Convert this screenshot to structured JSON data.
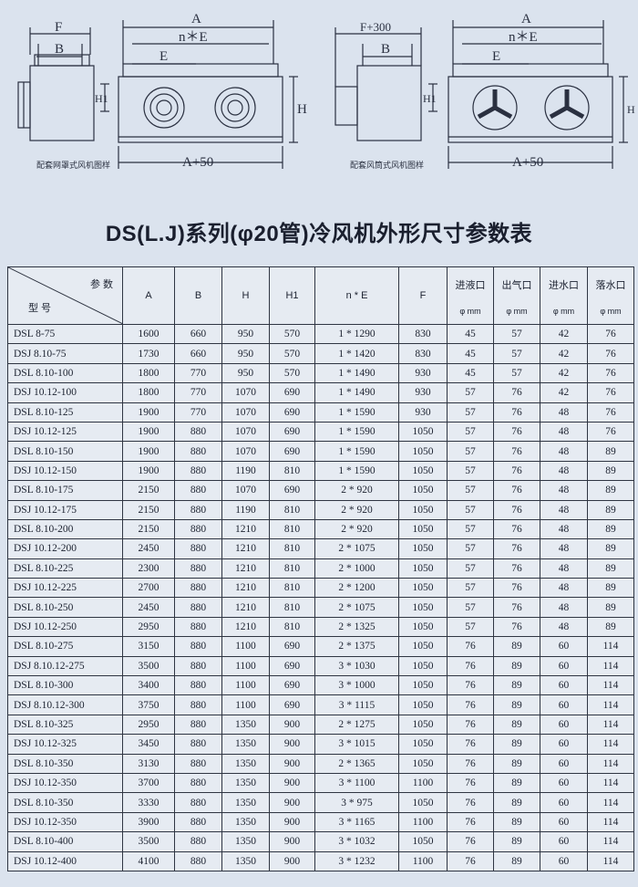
{
  "diagrams": {
    "dim_a": "A",
    "dim_b": "B",
    "dim_f_b": "F",
    "dim_f300": "F+300",
    "dim_ne": "n＊E",
    "dim_e": "E",
    "dim_h": "H",
    "dim_h1": "H1",
    "dim_a50": "A+50",
    "caption_left": "配套网罩式风机图样",
    "caption_right": "配套风筒式风机图样"
  },
  "title": "DS(L.J)系列(φ20管)冷风机外形尺寸参数表",
  "table": {
    "header": {
      "diag_top": "参 数",
      "diag_bottom": "型 号",
      "col_a": "A",
      "col_b": "B",
      "col_h": "H",
      "col_h1": "H1",
      "col_ne": "n * E",
      "col_f": "F",
      "col_in": "进液口",
      "col_out": "出气口",
      "col_water": "进水口",
      "col_drain": "落水口",
      "unit": "φ mm"
    },
    "rows": [
      [
        "DSL 8-75",
        "1600",
        "660",
        "950",
        "570",
        "1 * 1290",
        "830",
        "45",
        "57",
        "42",
        "76"
      ],
      [
        "DSJ 8.10-75",
        "1730",
        "660",
        "950",
        "570",
        "1 * 1420",
        "830",
        "45",
        "57",
        "42",
        "76"
      ],
      [
        "DSL 8.10-100",
        "1800",
        "770",
        "950",
        "570",
        "1 * 1490",
        "930",
        "45",
        "57",
        "42",
        "76"
      ],
      [
        "DSJ 10.12-100",
        "1800",
        "770",
        "1070",
        "690",
        "1 * 1490",
        "930",
        "57",
        "76",
        "42",
        "76"
      ],
      [
        "DSL 8.10-125",
        "1900",
        "770",
        "1070",
        "690",
        "1 * 1590",
        "930",
        "57",
        "76",
        "48",
        "76"
      ],
      [
        "DSJ 10.12-125",
        "1900",
        "880",
        "1070",
        "690",
        "1 * 1590",
        "1050",
        "57",
        "76",
        "48",
        "76"
      ],
      [
        "DSL 8.10-150",
        "1900",
        "880",
        "1070",
        "690",
        "1 * 1590",
        "1050",
        "57",
        "76",
        "48",
        "89"
      ],
      [
        "DSJ 10.12-150",
        "1900",
        "880",
        "1190",
        "810",
        "1 * 1590",
        "1050",
        "57",
        "76",
        "48",
        "89"
      ],
      [
        "DSL 8.10-175",
        "2150",
        "880",
        "1070",
        "690",
        "2 * 920",
        "1050",
        "57",
        "76",
        "48",
        "89"
      ],
      [
        "DSJ 10.12-175",
        "2150",
        "880",
        "1190",
        "810",
        "2 * 920",
        "1050",
        "57",
        "76",
        "48",
        "89"
      ],
      [
        "DSL 8.10-200",
        "2150",
        "880",
        "1210",
        "810",
        "2 * 920",
        "1050",
        "57",
        "76",
        "48",
        "89"
      ],
      [
        "DSJ 10.12-200",
        "2450",
        "880",
        "1210",
        "810",
        "2 * 1075",
        "1050",
        "57",
        "76",
        "48",
        "89"
      ],
      [
        "DSL 8.10-225",
        "2300",
        "880",
        "1210",
        "810",
        "2 * 1000",
        "1050",
        "57",
        "76",
        "48",
        "89"
      ],
      [
        "DSJ 10.12-225",
        "2700",
        "880",
        "1210",
        "810",
        "2 * 1200",
        "1050",
        "57",
        "76",
        "48",
        "89"
      ],
      [
        "DSL 8.10-250",
        "2450",
        "880",
        "1210",
        "810",
        "2 * 1075",
        "1050",
        "57",
        "76",
        "48",
        "89"
      ],
      [
        "DSJ 10.12-250",
        "2950",
        "880",
        "1210",
        "810",
        "2 * 1325",
        "1050",
        "57",
        "76",
        "48",
        "89"
      ],
      [
        "DSL 8.10-275",
        "3150",
        "880",
        "1100",
        "690",
        "2 * 1375",
        "1050",
        "76",
        "89",
        "60",
        "114"
      ],
      [
        "DSJ 8.10.12-275",
        "3500",
        "880",
        "1100",
        "690",
        "3 * 1030",
        "1050",
        "76",
        "89",
        "60",
        "114"
      ],
      [
        "DSL 8.10-300",
        "3400",
        "880",
        "1100",
        "690",
        "3 * 1000",
        "1050",
        "76",
        "89",
        "60",
        "114"
      ],
      [
        "DSJ 8.10.12-300",
        "3750",
        "880",
        "1100",
        "690",
        "3 * 1115",
        "1050",
        "76",
        "89",
        "60",
        "114"
      ],
      [
        "DSL 8.10-325",
        "2950",
        "880",
        "1350",
        "900",
        "2 * 1275",
        "1050",
        "76",
        "89",
        "60",
        "114"
      ],
      [
        "DSJ 10.12-325",
        "3450",
        "880",
        "1350",
        "900",
        "3 * 1015",
        "1050",
        "76",
        "89",
        "60",
        "114"
      ],
      [
        "DSL 8.10-350",
        "3130",
        "880",
        "1350",
        "900",
        "2 * 1365",
        "1050",
        "76",
        "89",
        "60",
        "114"
      ],
      [
        "DSJ 10.12-350",
        "3700",
        "880",
        "1350",
        "900",
        "3 * 1100",
        "1100",
        "76",
        "89",
        "60",
        "114"
      ],
      [
        "DSL 8.10-350",
        "3330",
        "880",
        "1350",
        "900",
        "3 * 975",
        "1050",
        "76",
        "89",
        "60",
        "114"
      ],
      [
        "DSJ 10.12-350",
        "3900",
        "880",
        "1350",
        "900",
        "3 * 1165",
        "1100",
        "76",
        "89",
        "60",
        "114"
      ],
      [
        "DSL 8.10-400",
        "3500",
        "880",
        "1350",
        "900",
        "3 * 1032",
        "1050",
        "76",
        "89",
        "60",
        "114"
      ],
      [
        "DSJ 10.12-400",
        "4100",
        "880",
        "1350",
        "900",
        "3 * 1232",
        "1100",
        "76",
        "89",
        "60",
        "114"
      ]
    ]
  }
}
